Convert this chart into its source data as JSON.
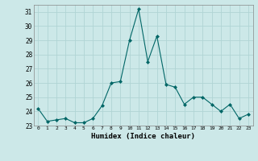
{
  "x": [
    0,
    1,
    2,
    3,
    4,
    5,
    6,
    7,
    8,
    9,
    10,
    11,
    12,
    13,
    14,
    15,
    16,
    17,
    18,
    19,
    20,
    21,
    22,
    23
  ],
  "y": [
    24.2,
    23.3,
    23.4,
    23.5,
    23.2,
    23.2,
    23.5,
    24.4,
    26.0,
    26.1,
    29.0,
    31.2,
    27.5,
    29.3,
    25.9,
    25.7,
    24.5,
    25.0,
    25.0,
    24.5,
    24.0,
    24.5,
    23.5,
    23.8
  ],
  "xlabel": "Humidex (Indice chaleur)",
  "bg_color": "#cce8e8",
  "grid_color": "#b0d4d4",
  "line_color": "#006666",
  "marker_color": "#006666",
  "ylim": [
    23,
    31.5
  ],
  "yticks": [
    23,
    24,
    25,
    26,
    27,
    28,
    29,
    30,
    31
  ],
  "xticks": [
    0,
    1,
    2,
    3,
    4,
    5,
    6,
    7,
    8,
    9,
    10,
    11,
    12,
    13,
    14,
    15,
    16,
    17,
    18,
    19,
    20,
    21,
    22,
    23
  ],
  "xlim": [
    -0.5,
    23.5
  ]
}
